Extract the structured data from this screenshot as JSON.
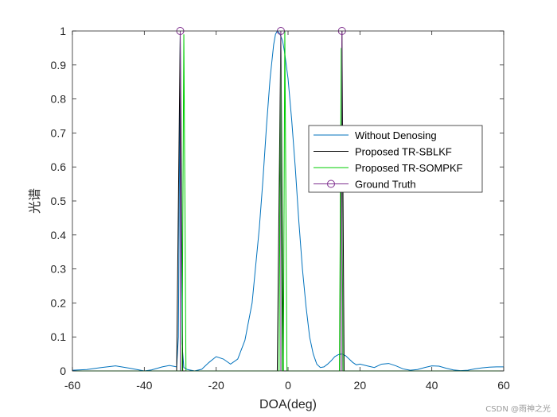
{
  "chart_data": {
    "type": "line",
    "xlabel": "DOA(deg)",
    "ylabel": "光谱",
    "xlim": [
      -60,
      60
    ],
    "ylim": [
      0,
      1
    ],
    "xticks": [
      -60,
      -40,
      -20,
      0,
      20,
      40,
      60
    ],
    "yticks": [
      0,
      0.1,
      0.2,
      0.3,
      0.4,
      0.5,
      0.6,
      0.7,
      0.8,
      0.9,
      1
    ],
    "grid": false,
    "legend_position": "right",
    "series": [
      {
        "name": "Without Denosing",
        "color": "#0072BD",
        "x": [
          -60,
          -56,
          -52,
          -48,
          -44,
          -40,
          -38,
          -35,
          -33,
          -31,
          -30.5,
          -30,
          -29.5,
          -29,
          -28,
          -26,
          -24,
          -22,
          -20,
          -18,
          -16,
          -14,
          -12,
          -10,
          -8,
          -7,
          -6,
          -5,
          -4,
          -3.5,
          -3,
          -2.5,
          -2,
          -1.5,
          -1,
          0,
          1,
          2,
          3,
          4,
          5,
          6,
          7,
          8,
          9,
          10,
          11,
          12,
          13,
          14,
          15,
          16,
          17,
          18,
          19,
          20,
          22,
          24,
          26,
          28,
          30,
          32,
          34,
          36,
          38,
          40,
          42,
          44,
          46,
          48,
          50,
          52,
          54,
          56,
          58,
          60
        ],
        "values": [
          0.002,
          0.004,
          0.01,
          0.015,
          0.008,
          0.0,
          0.003,
          0.012,
          0.016,
          0.012,
          0.1,
          0.99,
          0.08,
          0.01,
          0.004,
          0.0,
          0.005,
          0.025,
          0.042,
          0.035,
          0.02,
          0.035,
          0.09,
          0.2,
          0.42,
          0.56,
          0.72,
          0.86,
          0.96,
          0.99,
          1.0,
          0.995,
          0.985,
          0.97,
          0.94,
          0.86,
          0.74,
          0.6,
          0.44,
          0.3,
          0.19,
          0.1,
          0.05,
          0.02,
          0.01,
          0.012,
          0.02,
          0.03,
          0.042,
          0.048,
          0.05,
          0.045,
          0.035,
          0.025,
          0.018,
          0.02,
          0.015,
          0.01,
          0.02,
          0.022,
          0.015,
          0.006,
          0.002,
          0.004,
          0.01,
          0.015,
          0.014,
          0.008,
          0.003,
          0.001,
          0.002,
          0.006,
          0.009,
          0.011,
          0.012,
          0.012
        ]
      },
      {
        "name": "Proposed TR-SBLKF",
        "color": "#000000",
        "x": [
          -60,
          -31,
          -30,
          -29.3,
          -3,
          -2,
          -1.3,
          14.4,
          15,
          15.6,
          60
        ],
        "values": [
          0,
          0,
          1,
          0,
          0,
          1,
          0,
          0,
          1,
          0,
          0
        ]
      },
      {
        "name": "Proposed TR-SOMPKF",
        "color": "#00CC00",
        "x": [
          -60,
          -29.5,
          -29,
          -28.4,
          -2.5,
          -2,
          -1.6,
          -1.3,
          -0.9,
          -0.3,
          14.3,
          14.8,
          15.3,
          60
        ],
        "values": [
          0,
          0,
          0.99,
          0,
          0,
          1,
          0,
          0,
          1,
          0,
          0,
          0.95,
          0,
          0
        ]
      },
      {
        "name": "Ground Truth",
        "color": "#7E2F8E",
        "stems": [
          -30,
          -2,
          15
        ],
        "stem_value": 1
      }
    ]
  },
  "watermark": "CSDN @雨神之光"
}
